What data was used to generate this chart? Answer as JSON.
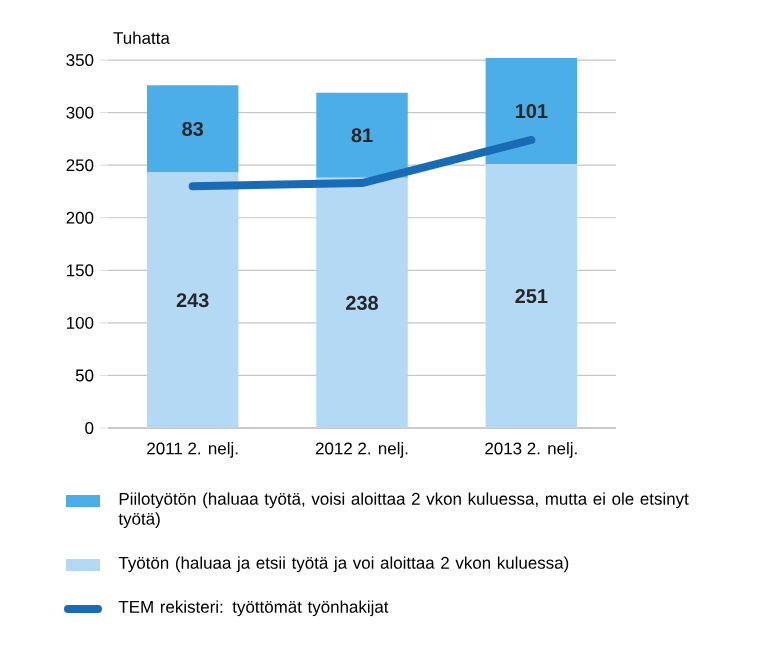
{
  "chart_data": {
    "type": "bar",
    "stacked": true,
    "ylabel": "Tuhatta",
    "categories": [
      "2011 2. nelj.",
      "2012 2. nelj.",
      "2013 2. nelj."
    ],
    "series": [
      {
        "name": "Työtön (haluaa ja etsii työtä ja voi aloittaa 2 vkon kuluessa)",
        "color": "#b3d9f5",
        "values": [
          243,
          238,
          251
        ],
        "value_labels": [
          "243",
          "238",
          "251"
        ]
      },
      {
        "name": "Piilotyötön (haluaa työtä, voisi aloittaa 2 vkon kuluessa, mutta ei ole etsinyt työtä)",
        "color": "#4baee8",
        "values": [
          83,
          81,
          101
        ],
        "value_labels": [
          "83",
          "81",
          "101"
        ]
      },
      {
        "name": "TEM rekisteri: työttömät työnhakijat",
        "type": "line",
        "color": "#1a6bb5",
        "values": [
          230,
          233,
          274
        ]
      }
    ],
    "ylim": [
      0,
      352
    ],
    "yticks": [
      0,
      50,
      100,
      150,
      200,
      250,
      300,
      350
    ],
    "grid": "y",
    "legend": "bottom"
  }
}
